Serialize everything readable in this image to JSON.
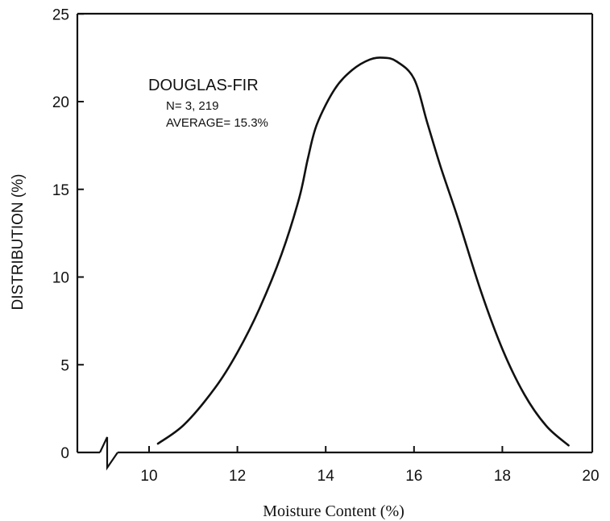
{
  "chart_data": {
    "type": "line",
    "title": "",
    "xlabel": "Moisture Content (%)",
    "ylabel": "DISTRIBUTION (%)",
    "xlim": [
      8,
      20
    ],
    "ylim": [
      0,
      25
    ],
    "x_ticks": [
      "10",
      "12",
      "14",
      "16",
      "18",
      "20"
    ],
    "y_ticks": [
      "0",
      "5",
      "10",
      "15",
      "20",
      "25"
    ],
    "axis_break": "x-axis near origin",
    "grid": false,
    "legend": "none",
    "annotation": {
      "title": "DOUGLAS-FIR",
      "line1": "N= 3, 219",
      "line2": "AVERAGE= 15.3%"
    },
    "series": [
      {
        "x": [
          10.2,
          10.8,
          11.5,
          12.0,
          12.5,
          13.0,
          13.4,
          13.6,
          13.8,
          14.2,
          14.6,
          15.0,
          15.3,
          15.6,
          16.0,
          16.3,
          16.6,
          17.0,
          17.5,
          18.0,
          18.5,
          19.0,
          19.5
        ],
        "y": [
          0.5,
          1.6,
          3.7,
          5.7,
          8.2,
          11.3,
          14.5,
          16.8,
          18.7,
          20.7,
          21.8,
          22.4,
          22.5,
          22.3,
          21.3,
          18.8,
          16.3,
          13.3,
          9.3,
          5.9,
          3.3,
          1.5,
          0.4
        ]
      }
    ]
  }
}
